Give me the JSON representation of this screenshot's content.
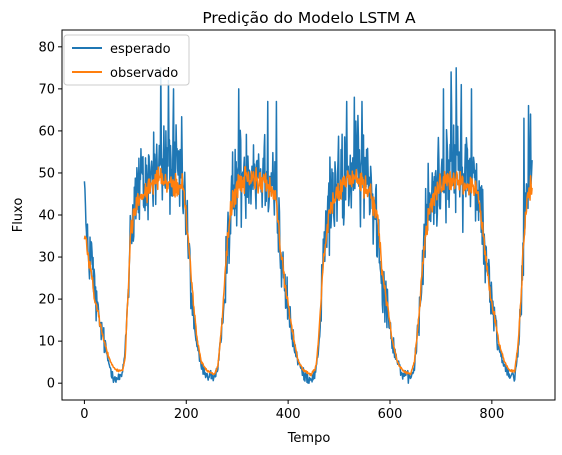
{
  "chart_data": {
    "type": "line",
    "title": "Predição do Modelo LSTM A",
    "xlabel": "Tempo",
    "ylabel": "Fluxo",
    "xlim": [
      -44,
      924
    ],
    "ylim": [
      -4,
      84
    ],
    "xticks": [
      0,
      200,
      400,
      600,
      800
    ],
    "yticks": [
      0,
      10,
      20,
      30,
      40,
      50,
      60,
      70,
      80
    ],
    "grid": false,
    "legend_position": "upper-left",
    "n_points": 880,
    "series": [
      {
        "name": "esperado",
        "color": "#1f77b4",
        "baseline": [
          [
            0,
            48
          ],
          [
            5,
            30
          ],
          [
            12,
            32
          ],
          [
            20,
            22
          ],
          [
            28,
            15
          ],
          [
            35,
            12
          ],
          [
            45,
            6
          ],
          [
            55,
            2
          ],
          [
            65,
            1
          ],
          [
            75,
            2
          ],
          [
            80,
            8
          ],
          [
            85,
            20
          ],
          [
            90,
            35
          ],
          [
            100,
            45
          ],
          [
            115,
            47
          ],
          [
            135,
            50
          ],
          [
            150,
            52
          ],
          [
            165,
            51
          ],
          [
            180,
            50
          ],
          [
            193,
            48
          ],
          [
            200,
            40
          ],
          [
            205,
            30
          ],
          [
            210,
            22
          ],
          [
            215,
            15
          ],
          [
            222,
            8
          ],
          [
            230,
            4
          ],
          [
            240,
            2
          ],
          [
            255,
            1.5
          ],
          [
            262,
            3
          ],
          [
            270,
            12
          ],
          [
            277,
            28
          ],
          [
            285,
            40
          ],
          [
            300,
            48
          ],
          [
            320,
            52
          ],
          [
            340,
            51
          ],
          [
            360,
            50
          ],
          [
            375,
            48
          ],
          [
            382,
            35
          ],
          [
            390,
            25
          ],
          [
            400,
            18
          ],
          [
            410,
            10
          ],
          [
            420,
            5
          ],
          [
            430,
            2
          ],
          [
            445,
            1
          ],
          [
            455,
            3
          ],
          [
            462,
            12
          ],
          [
            470,
            32
          ],
          [
            480,
            42
          ],
          [
            500,
            47
          ],
          [
            520,
            50
          ],
          [
            540,
            50
          ],
          [
            560,
            48
          ],
          [
            575,
            40
          ],
          [
            582,
            28
          ],
          [
            590,
            22
          ],
          [
            598,
            16
          ],
          [
            605,
            10
          ],
          [
            615,
            5
          ],
          [
            625,
            2
          ],
          [
            640,
            1
          ],
          [
            648,
            4
          ],
          [
            657,
            15
          ],
          [
            665,
            30
          ],
          [
            675,
            42
          ],
          [
            690,
            47
          ],
          [
            710,
            50
          ],
          [
            730,
            52
          ],
          [
            750,
            50
          ],
          [
            770,
            49
          ],
          [
            780,
            40
          ],
          [
            788,
            30
          ],
          [
            796,
            22
          ],
          [
            805,
            15
          ],
          [
            815,
            8
          ],
          [
            825,
            4
          ],
          [
            835,
            2
          ],
          [
            845,
            2
          ],
          [
            852,
            8
          ],
          [
            858,
            20
          ],
          [
            863,
            35
          ],
          [
            870,
            48
          ],
          [
            879,
            52
          ]
        ],
        "noise_amplitude": 9,
        "spikes": [
          [
            0,
            48
          ],
          [
            150,
            75
          ],
          [
            165,
            72
          ],
          [
            175,
            70
          ],
          [
            303,
            70
          ],
          [
            360,
            67
          ],
          [
            377,
            67
          ],
          [
            515,
            67
          ],
          [
            530,
            68
          ],
          [
            545,
            67
          ],
          [
            705,
            70
          ],
          [
            720,
            74
          ],
          [
            730,
            75
          ],
          [
            740,
            71
          ],
          [
            760,
            70
          ],
          [
            863,
            63
          ],
          [
            872,
            66
          ],
          [
            876,
            64
          ]
        ]
      },
      {
        "name": "observado",
        "color": "#ff7f0e",
        "baseline": [
          [
            0,
            35
          ],
          [
            5,
            33
          ],
          [
            12,
            27
          ],
          [
            20,
            20
          ],
          [
            28,
            16
          ],
          [
            35,
            12
          ],
          [
            45,
            7
          ],
          [
            55,
            4
          ],
          [
            65,
            3
          ],
          [
            75,
            3
          ],
          [
            80,
            6
          ],
          [
            85,
            20
          ],
          [
            90,
            35
          ],
          [
            100,
            42
          ],
          [
            115,
            45
          ],
          [
            135,
            48
          ],
          [
            150,
            49
          ],
          [
            165,
            48
          ],
          [
            180,
            47
          ],
          [
            193,
            47
          ],
          [
            200,
            40
          ],
          [
            205,
            32
          ],
          [
            210,
            25
          ],
          [
            215,
            18
          ],
          [
            222,
            10
          ],
          [
            230,
            5
          ],
          [
            240,
            3
          ],
          [
            255,
            2
          ],
          [
            262,
            4
          ],
          [
            270,
            14
          ],
          [
            277,
            28
          ],
          [
            285,
            40
          ],
          [
            300,
            47
          ],
          [
            320,
            49
          ],
          [
            340,
            48
          ],
          [
            360,
            47
          ],
          [
            375,
            45
          ],
          [
            382,
            36
          ],
          [
            390,
            27
          ],
          [
            400,
            19
          ],
          [
            410,
            11
          ],
          [
            420,
            5
          ],
          [
            430,
            3
          ],
          [
            445,
            2
          ],
          [
            455,
            4
          ],
          [
            462,
            14
          ],
          [
            470,
            30
          ],
          [
            480,
            40
          ],
          [
            500,
            46
          ],
          [
            520,
            49
          ],
          [
            540,
            48
          ],
          [
            560,
            46
          ],
          [
            575,
            40
          ],
          [
            582,
            30
          ],
          [
            590,
            22
          ],
          [
            598,
            16
          ],
          [
            605,
            10
          ],
          [
            615,
            5
          ],
          [
            625,
            3
          ],
          [
            640,
            2
          ],
          [
            648,
            5
          ],
          [
            657,
            16
          ],
          [
            665,
            30
          ],
          [
            675,
            40
          ],
          [
            690,
            46
          ],
          [
            710,
            48
          ],
          [
            730,
            48
          ],
          [
            750,
            47
          ],
          [
            770,
            46
          ],
          [
            780,
            40
          ],
          [
            788,
            30
          ],
          [
            796,
            22
          ],
          [
            805,
            16
          ],
          [
            815,
            9
          ],
          [
            825,
            5
          ],
          [
            835,
            3
          ],
          [
            845,
            3
          ],
          [
            852,
            10
          ],
          [
            858,
            22
          ],
          [
            863,
            35
          ],
          [
            870,
            45
          ],
          [
            879,
            47
          ]
        ],
        "noise_amplitude": 2
      }
    ]
  }
}
